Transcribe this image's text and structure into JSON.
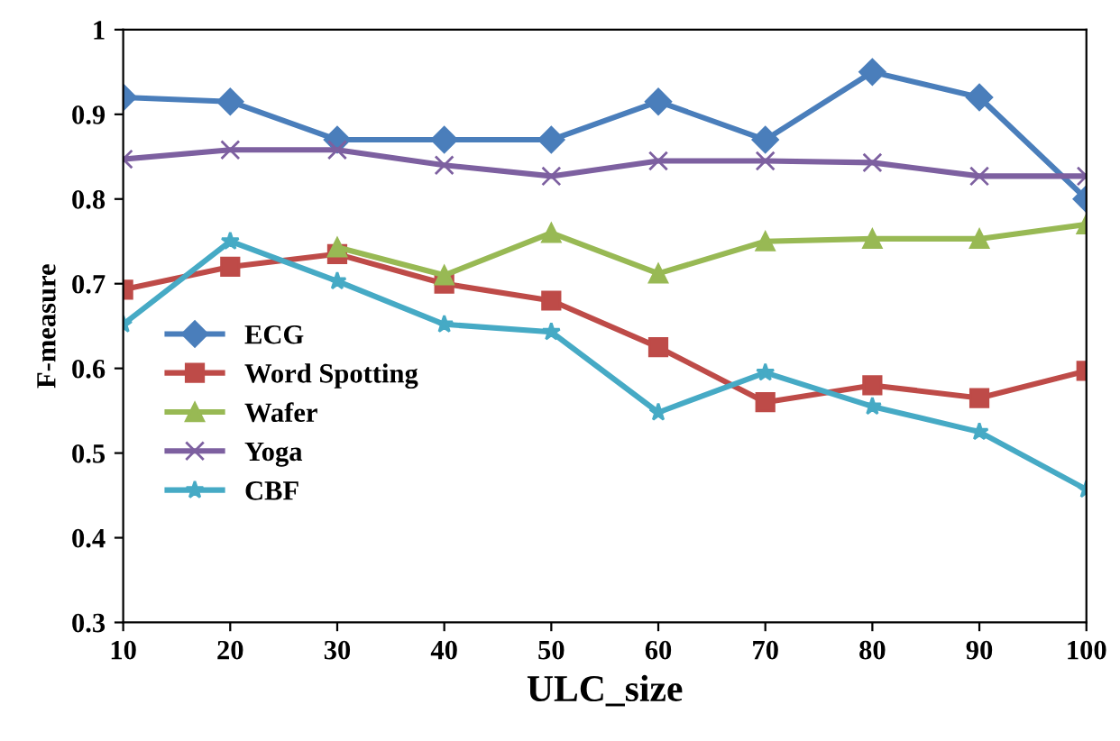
{
  "chart_data": {
    "type": "line",
    "xlabel": "ULC_size",
    "ylabel": "F-measure",
    "x": [
      10,
      20,
      30,
      40,
      50,
      60,
      70,
      80,
      90,
      100
    ],
    "series": [
      {
        "name": "ECG",
        "color": "#4a7ebb",
        "marker": "diamond",
        "values": [
          0.92,
          0.915,
          0.87,
          0.87,
          0.87,
          0.915,
          0.87,
          0.95,
          0.92,
          0.8
        ]
      },
      {
        "name": "Word Spotting",
        "color": "#be4b48",
        "marker": "square",
        "values": [
          0.693,
          0.72,
          0.735,
          0.7,
          0.68,
          0.625,
          0.56,
          0.58,
          0.565,
          0.597
        ]
      },
      {
        "name": "Wafer",
        "color": "#98b954",
        "marker": "triangle",
        "values": [
          null,
          null,
          0.743,
          0.71,
          0.76,
          0.712,
          0.75,
          0.753,
          0.753,
          0.77
        ]
      },
      {
        "name": "Yoga",
        "color": "#7d60a0",
        "marker": "cross",
        "values": [
          0.847,
          0.858,
          0.858,
          0.84,
          0.827,
          0.845,
          0.845,
          0.843,
          0.827,
          0.827
        ]
      },
      {
        "name": "CBF",
        "color": "#46aac5",
        "marker": "star",
        "values": [
          0.652,
          0.75,
          0.703,
          0.652,
          0.643,
          0.548,
          0.595,
          0.555,
          0.525,
          0.457
        ]
      }
    ],
    "xlim": [
      10,
      100
    ],
    "ylim": [
      0.3,
      1
    ],
    "xticks": [
      10,
      20,
      30,
      40,
      50,
      60,
      70,
      80,
      90,
      100
    ],
    "yticks": [
      0.3,
      0.4,
      0.5,
      0.6,
      0.7,
      0.8,
      0.9,
      1
    ],
    "grid": false,
    "legend": "left",
    "line_style": "solid"
  }
}
